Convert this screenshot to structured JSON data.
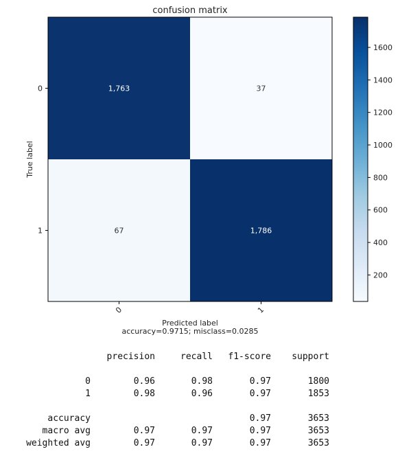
{
  "chart_data": {
    "type": "heatmap",
    "title": "confusion matrix",
    "xlabel": "Predicted label",
    "xlabel_note": "accuracy=0.9715; misclass=0.0285",
    "ylabel": "True label",
    "x_categories": [
      "0",
      "1"
    ],
    "y_categories": [
      "0",
      "1"
    ],
    "values": [
      [
        1763,
        37
      ],
      [
        67,
        1786
      ]
    ],
    "cell_labels": [
      [
        "1,763",
        "37"
      ],
      [
        "67",
        "1,786"
      ]
    ],
    "colormap": "Blues",
    "colorbar": {
      "min": 37,
      "max": 1786,
      "ticks": [
        200,
        400,
        600,
        800,
        1000,
        1200,
        1400,
        1600
      ],
      "tick_labels": [
        "200",
        "400",
        "600",
        "800",
        "1000",
        "1200",
        "1400",
        "1600"
      ]
    },
    "colors": {
      "low": "#f7fbff",
      "high": "#08306b",
      "text_dark": "#ffffff",
      "text_light": "#333333"
    }
  },
  "report": {
    "headers": [
      "precision",
      "recall",
      "f1-score",
      "support"
    ],
    "rows": [
      {
        "label": "0",
        "values": [
          "0.96",
          "0.98",
          "0.97",
          "1800"
        ]
      },
      {
        "label": "1",
        "values": [
          "0.98",
          "0.96",
          "0.97",
          "1853"
        ]
      },
      {
        "label": "accuracy",
        "values": [
          "",
          "",
          "0.97",
          "3653"
        ]
      },
      {
        "label": "macro avg",
        "values": [
          "0.97",
          "0.97",
          "0.97",
          "3653"
        ]
      },
      {
        "label": "weighted avg",
        "values": [
          "0.97",
          "0.97",
          "0.97",
          "3653"
        ]
      }
    ]
  }
}
